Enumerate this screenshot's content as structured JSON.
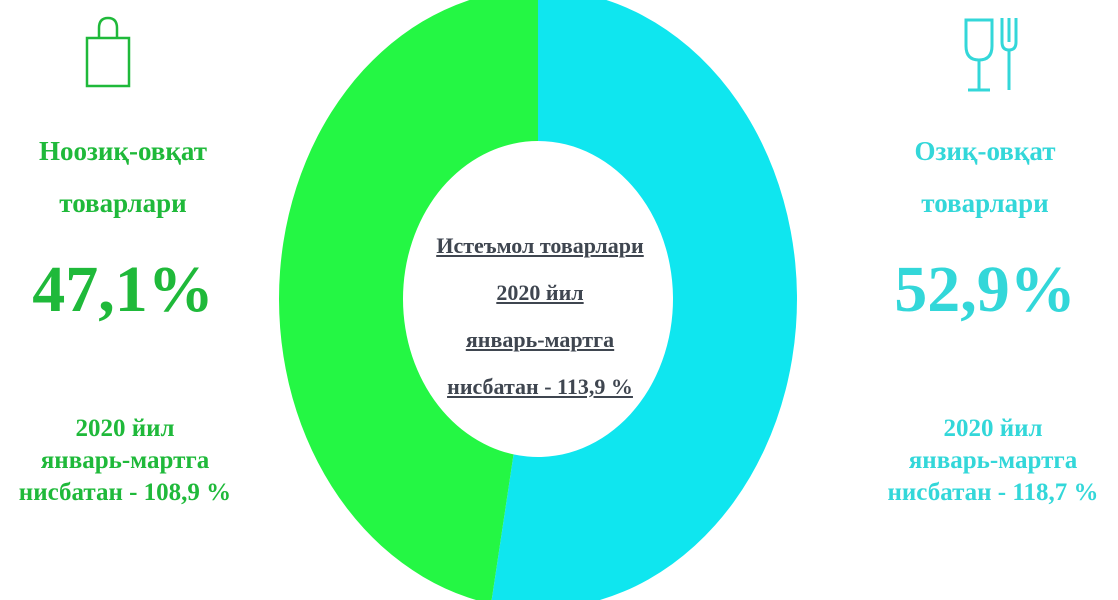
{
  "chart_data": {
    "type": "pie",
    "categories": [
      "Ноозиқ-овқат товарлари",
      "Озиқ-овқат товарлари"
    ],
    "values": [
      47.1,
      52.9
    ],
    "colors": [
      "#24f744",
      "#0fe6ef"
    ],
    "center_label": [
      "Истеъмол товарлари",
      "2020 йил",
      "январь-мартга",
      "нисбатан - 113,9 %"
    ]
  },
  "left": {
    "icon": "shopping-bag-icon",
    "category_line1": "Ноозиқ-овқат",
    "category_line2": "товарлари",
    "percent": "47,1%",
    "growth_line1": "2020 йил",
    "growth_line2": "январь-мартга",
    "growth_line3": "нисбатан - 108,9 %"
  },
  "right": {
    "icon": "glass-fork-icon",
    "category_line1": "Озиқ-овқат",
    "category_line2": "товарлари",
    "percent": "52,9%",
    "growth_line1": "2020 йил",
    "growth_line2": "январь-мартга",
    "growth_line3": "нисбатан - 118,7 %"
  },
  "colors": {
    "left_text": "#1fb93a",
    "right_text": "#33d7d9",
    "center_text": "#3f4650"
  }
}
